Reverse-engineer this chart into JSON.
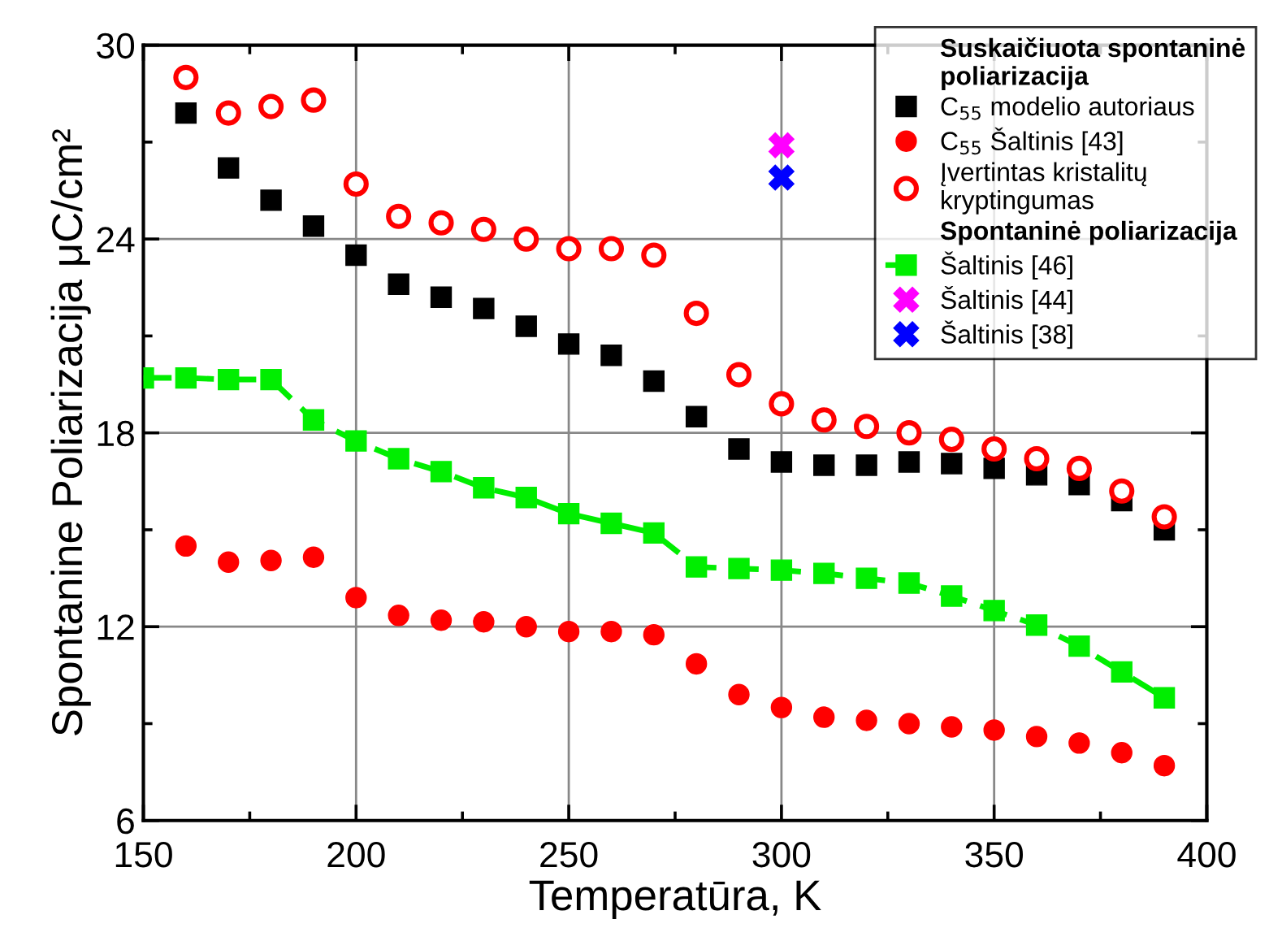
{
  "chart_data": {
    "type": "scatter",
    "xlabel": "Temperatūra, K",
    "ylabel": "Spontanine Poliarizacija μC/cm²",
    "xlim": [
      150,
      400
    ],
    "xticks": [
      150,
      200,
      250,
      300,
      350,
      400
    ],
    "ylim": [
      6,
      30
    ],
    "yticks": [
      6,
      12,
      18,
      24,
      30
    ],
    "grid": true,
    "legend": "top right",
    "legend_title": "Suskaičiuota spontaninė\npoliarizacija",
    "annotations": [
      "Spontaninė poliarizacija"
    ],
    "series": [
      {
        "name": "C$_{55}$ modelio autoriaus",
        "color": "#000000",
        "marker": "square",
        "x": [
          160,
          170,
          180,
          190,
          200,
          210,
          220,
          230,
          240,
          250,
          260,
          270,
          280,
          290,
          300,
          310,
          320,
          330,
          340,
          350,
          360,
          370,
          380,
          390
        ],
        "values": [
          27.9,
          26.2,
          25.2,
          24.4,
          23.5,
          22.6,
          22.2,
          21.85,
          21.3,
          20.75,
          20.4,
          19.6,
          18.5,
          17.5,
          17.1,
          17.0,
          17.0,
          17.1,
          17.05,
          16.9,
          16.7,
          16.4,
          15.9,
          15.0
        ]
      },
      {
        "name": "C$_{55}$ Šaltinis [43]",
        "color": "#ff0000",
        "marker": "circle",
        "x": [
          160,
          170,
          180,
          190,
          200,
          210,
          220,
          230,
          240,
          250,
          260,
          270,
          280,
          290,
          300,
          310,
          320,
          330,
          340,
          350,
          360,
          370,
          380,
          390
        ],
        "values": [
          14.5,
          14.0,
          14.05,
          14.15,
          12.9,
          12.35,
          12.2,
          12.15,
          12.0,
          11.85,
          11.85,
          11.75,
          10.85,
          9.9,
          9.5,
          9.2,
          9.1,
          9.0,
          8.9,
          8.8,
          8.6,
          8.4,
          8.1,
          7.7
        ]
      },
      {
        "name": "Įvertintas kristalitų\nkryptingumas",
        "color": "#ff0000",
        "marker": "circle",
        "x": [
          160,
          170,
          180,
          190,
          200,
          210,
          220,
          230,
          240,
          250,
          260,
          270,
          280,
          290,
          300,
          310,
          320,
          330,
          340,
          350,
          360,
          370,
          380,
          390
        ],
        "values": [
          29.0,
          27.9,
          28.1,
          28.3,
          25.7,
          24.7,
          24.5,
          24.3,
          24.0,
          23.7,
          23.7,
          23.5,
          21.7,
          19.8,
          18.9,
          18.4,
          18.2,
          18.0,
          17.8,
          17.5,
          17.2,
          16.9,
          16.2,
          15.4
        ]
      },
      {
        "name": "Šaltinis [46]",
        "type": "line",
        "color": "#00ee00",
        "marker": "square",
        "line_style": "dashed",
        "x": [
          150,
          160,
          170,
          180,
          190,
          200,
          210,
          220,
          230,
          240,
          250,
          260,
          270,
          280,
          290,
          300,
          310,
          320,
          330,
          340,
          350,
          360,
          370,
          380,
          390
        ],
        "values": [
          19.7,
          19.7,
          19.65,
          19.65,
          18.4,
          17.75,
          17.2,
          16.8,
          16.3,
          16.0,
          15.5,
          15.2,
          14.9,
          13.85,
          13.8,
          13.75,
          13.65,
          13.5,
          13.35,
          12.95,
          12.5,
          12.05,
          11.4,
          10.6,
          9.8
        ]
      },
      {
        "name": "Šaltinis [44]",
        "color": "#ff00ff",
        "marker": "cross",
        "x": [
          300
        ],
        "values": [
          26.9
        ]
      },
      {
        "name": "Šaltinis [38]",
        "color": "#0000ff",
        "marker": "cross",
        "x": [
          300
        ],
        "values": [
          25.9
        ]
      }
    ]
  }
}
